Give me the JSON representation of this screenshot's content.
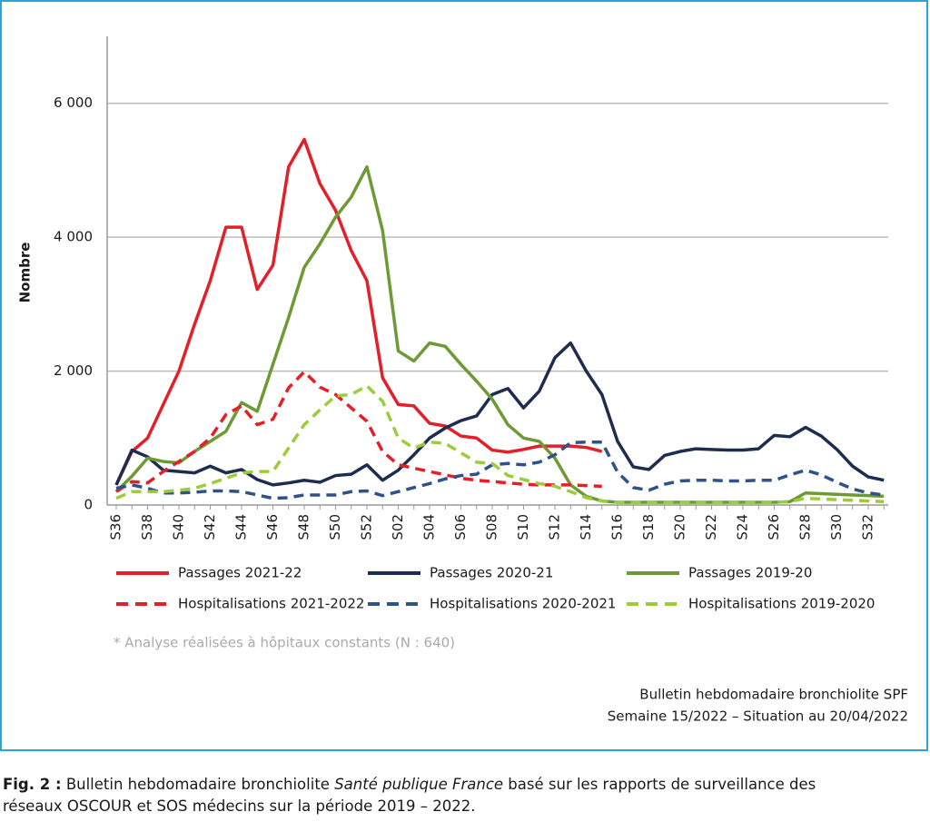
{
  "chart_data": {
    "type": "line",
    "ylabel": "Nombre",
    "categories": [
      "S36",
      null,
      "S38",
      null,
      "S40",
      null,
      "S42",
      null,
      "S44",
      null,
      "S46",
      null,
      "S48",
      null,
      "S50",
      null,
      "S52",
      null,
      "S02",
      null,
      "S04",
      null,
      "S06",
      null,
      "S08",
      null,
      "S10",
      null,
      "S12",
      null,
      "S14",
      null,
      "S16",
      null,
      "S18",
      null,
      "S20",
      null,
      "S22",
      null,
      "S24",
      null,
      "S26",
      null,
      "S28",
      null,
      "S30",
      null,
      "S32",
      null
    ],
    "ylim": [
      0,
      7000
    ],
    "yticks": [
      0,
      {
        "value": 2000,
        "label": "2 000"
      },
      {
        "value": 4000,
        "label": "4 000"
      },
      {
        "value": 6000,
        "label": "6 000"
      }
    ],
    "grid": true,
    "series": [
      {
        "name": "Passages 2021-22",
        "color": "#e3202a",
        "dashed": false,
        "values": [
          300,
          800,
          1000,
          1500,
          2000,
          2700,
          3350,
          4150,
          4150,
          3220,
          3580,
          5050,
          5460,
          4800,
          4400,
          3800,
          3350,
          1900,
          1500,
          1480,
          1220,
          1180,
          1030,
          1000,
          820,
          790,
          830,
          880,
          880,
          880,
          860,
          800,
          null,
          null,
          null,
          null,
          null,
          null,
          null,
          null,
          null,
          null,
          null,
          null,
          null,
          null,
          null,
          null,
          null,
          null
        ]
      },
      {
        "name": "Passages 2020-21",
        "color": "#1e2d4f",
        "dashed": false,
        "values": [
          300,
          820,
          720,
          520,
          500,
          480,
          580,
          480,
          530,
          380,
          300,
          330,
          370,
          340,
          440,
          460,
          600,
          370,
          520,
          750,
          1000,
          1150,
          1260,
          1330,
          1650,
          1740,
          1450,
          1700,
          2200,
          2420,
          2000,
          1650,
          950,
          570,
          530,
          740,
          800,
          840,
          830,
          820,
          820,
          840,
          1040,
          1020,
          1160,
          1030,
          830,
          580,
          420,
          370
        ]
      },
      {
        "name": "Passages 2019-20",
        "color": "#6d9a35",
        "dashed": false,
        "values": [
          200,
          430,
          700,
          650,
          630,
          800,
          950,
          1100,
          1530,
          1400,
          2100,
          2800,
          3550,
          3900,
          4300,
          4600,
          5050,
          4100,
          2300,
          2150,
          2420,
          2370,
          2100,
          1850,
          1580,
          1200,
          1000,
          950,
          700,
          300,
          130,
          60,
          40,
          40,
          40,
          40,
          40,
          40,
          40,
          40,
          40,
          40,
          40,
          50,
          180,
          170,
          160,
          150,
          140,
          130
        ]
      },
      {
        "name": "Hospitalisations 2021-2022",
        "color": "#e3202a",
        "dashed": true,
        "values": [
          200,
          350,
          330,
          500,
          650,
          800,
          1000,
          1350,
          1480,
          1200,
          1280,
          1750,
          1990,
          1760,
          1650,
          1450,
          1250,
          800,
          600,
          550,
          500,
          450,
          400,
          370,
          350,
          330,
          310,
          300,
          300,
          300,
          290,
          280,
          null,
          null,
          null,
          null,
          null,
          null,
          null,
          null,
          null,
          null,
          null,
          null,
          null,
          null,
          null,
          null,
          null,
          null
        ]
      },
      {
        "name": "Hospitalisations 2020-2021",
        "color": "#2f5287",
        "dashed": true,
        "values": [
          250,
          300,
          250,
          180,
          180,
          190,
          210,
          210,
          200,
          150,
          100,
          110,
          150,
          150,
          150,
          200,
          210,
          140,
          200,
          260,
          320,
          390,
          440,
          460,
          600,
          620,
          600,
          640,
          750,
          930,
          940,
          940,
          490,
          260,
          220,
          310,
          360,
          370,
          370,
          360,
          360,
          370,
          370,
          450,
          520,
          450,
          340,
          240,
          180,
          150
        ]
      },
      {
        "name": "Hospitalisations 2019-2020",
        "color": "#9ccc3b",
        "dashed": true,
        "values": [
          100,
          200,
          200,
          200,
          220,
          250,
          320,
          400,
          480,
          500,
          500,
          850,
          1200,
          1420,
          1630,
          1650,
          1780,
          1550,
          1000,
          850,
          940,
          920,
          780,
          640,
          620,
          440,
          380,
          320,
          280,
          200,
          110,
          60,
          40,
          40,
          40,
          40,
          40,
          40,
          40,
          40,
          40,
          40,
          40,
          50,
          100,
          90,
          80,
          70,
          60,
          50
        ]
      }
    ],
    "footnote": "* Analyse réalisées à hôpitaux constants (N : 640)",
    "source": [
      "Bulletin hebdomadaire bronchiolite SPF",
      "Semaine 15/2022 – Situation au 20/04/2022"
    ]
  },
  "caption": {
    "label": "Fig. 2 :",
    "before": " Bulletin hebdomadaire bronchiolite ",
    "italic": "Santé publique France",
    "after": " basé sur les rapports de surveillance des",
    "line2": "réseaux OSCOUR et SOS médecins sur la période 2019 – 2022."
  }
}
